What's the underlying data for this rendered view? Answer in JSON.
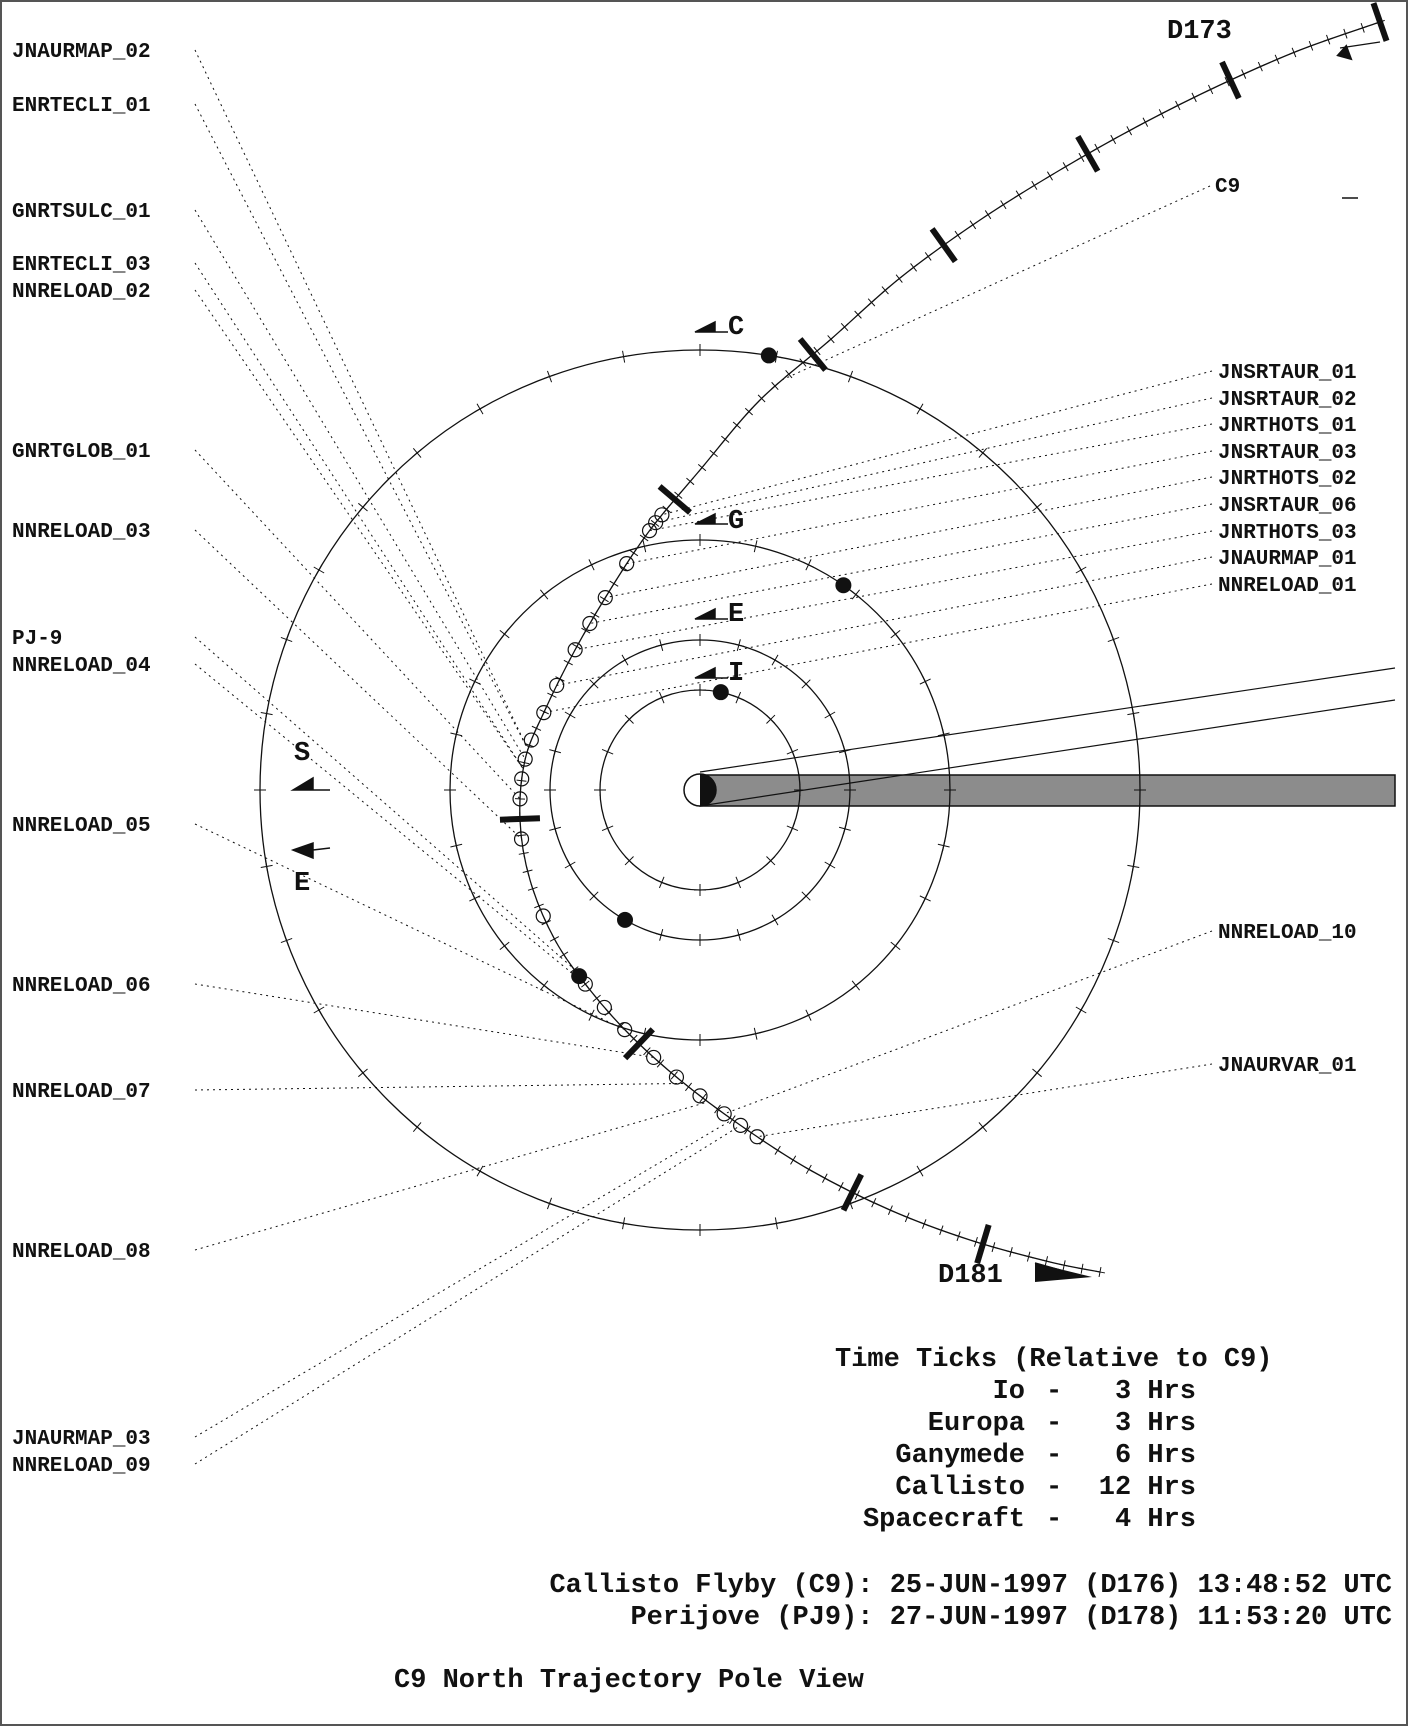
{
  "start_day": "D173",
  "end_day": "D181",
  "flyby_label": "C9",
  "perijove_label": "PJ-9",
  "moons": [
    {
      "name": "Io",
      "letter": "I"
    },
    {
      "name": "Europa",
      "letter": "E"
    },
    {
      "name": "Ganymede",
      "letter": "G"
    },
    {
      "name": "Callisto",
      "letter": "C"
    }
  ],
  "directions": {
    "sun": "S",
    "earth": "E"
  },
  "left_labels": [
    "JNAURMAP_02",
    "ENRTECLI_01",
    "GNRTSULC_01",
    "ENRTECLI_03",
    "NNRELOAD_02",
    "GNRTGLOB_01",
    "NNRELOAD_03",
    "PJ-9",
    "NNRELOAD_04",
    "NNRELOAD_05",
    "NNRELOAD_06",
    "NNRELOAD_07",
    "NNRELOAD_08",
    "JNAURMAP_03",
    "NNRELOAD_09"
  ],
  "right_labels": [
    "JNSRTAUR_01",
    "JNSRTAUR_02",
    "JNRTHOTS_01",
    "JNSRTAUR_03",
    "JNRTHOTS_02",
    "JNSRTAUR_06",
    "JNRTHOTS_03",
    "JNAURMAP_01",
    "NNRELOAD_01",
    "NNRELOAD_10",
    "JNAURVAR_01"
  ],
  "time_ticks": {
    "title": "Time Ticks (Relative to C9)",
    "rows": [
      {
        "body": "Io",
        "value": "3 Hrs"
      },
      {
        "body": "Europa",
        "value": "3 Hrs"
      },
      {
        "body": "Ganymede",
        "value": "6 Hrs"
      },
      {
        "body": "Callisto",
        "value": "12 Hrs"
      },
      {
        "body": "Spacecraft",
        "value": "4 Hrs"
      }
    ]
  },
  "events": {
    "flyby_line": "Callisto Flyby (C9): 25-JUN-1997 (D176) 13:48:52 UTC",
    "perijove_line": "Perijove (PJ9): 27-JUN-1997 (D178) 11:53:20 UTC"
  },
  "title": "C9 North Trajectory Pole View",
  "colors": {
    "ink": "#111111",
    "shadow": "#8c8c8c",
    "frame": "#555555"
  }
}
